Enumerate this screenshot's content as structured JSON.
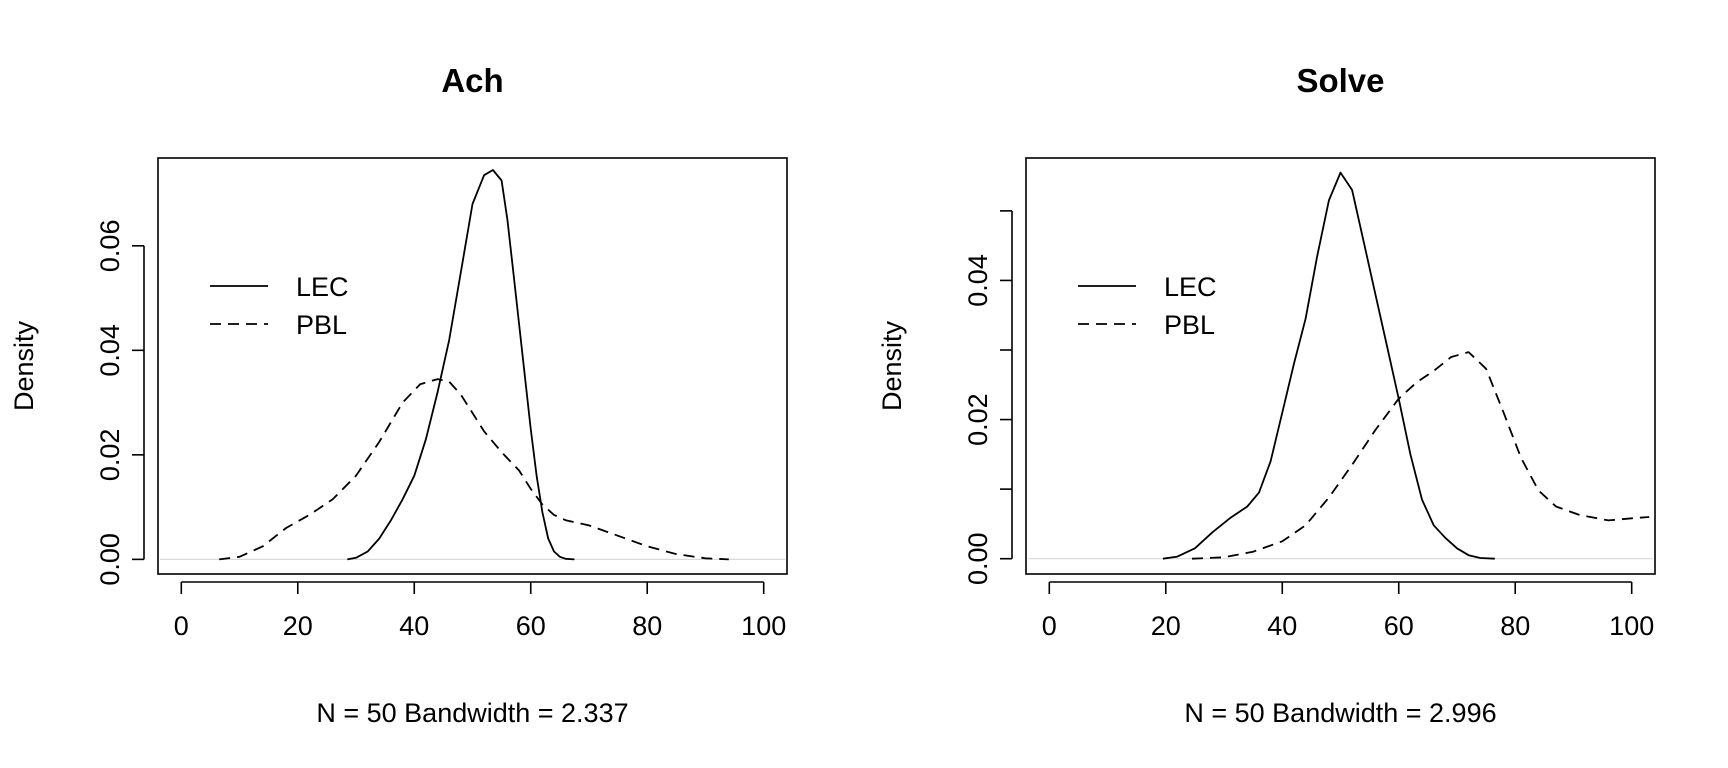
{
  "chart_data": [
    {
      "type": "line",
      "title": "Ach",
      "xlabel": "N = 50   Bandwidth = 2.337",
      "ylabel": "Density",
      "xlim": [
        -4,
        104
      ],
      "ylim": [
        -0.0028,
        0.0768
      ],
      "x_ticks": [
        0,
        20,
        40,
        60,
        80,
        100
      ],
      "x_tick_labels": [
        "0",
        "20",
        "40",
        "60",
        "80",
        "100"
      ],
      "y_ticks": [
        0.0,
        0.02,
        0.04,
        0.06
      ],
      "y_tick_labels": [
        "0.00",
        "0.02",
        "0.04",
        "0.06"
      ],
      "grid": false,
      "legend": {
        "position": "top-left",
        "entries": [
          "LEC",
          "PBL"
        ]
      },
      "series": [
        {
          "name": "LEC",
          "style": "solid",
          "x": [
            28.5,
            30,
            32,
            34,
            36,
            38,
            40,
            42,
            44,
            46,
            48,
            50,
            52,
            53.5,
            55,
            56,
            57,
            58,
            59,
            60,
            61,
            62,
            63,
            64,
            65,
            66,
            67.5
          ],
          "y": [
            0.0,
            0.0003,
            0.0015,
            0.004,
            0.0075,
            0.0115,
            0.016,
            0.023,
            0.032,
            0.042,
            0.055,
            0.068,
            0.0735,
            0.0745,
            0.0725,
            0.065,
            0.055,
            0.045,
            0.035,
            0.025,
            0.016,
            0.009,
            0.004,
            0.0015,
            0.0005,
            0.0001,
            0.0
          ]
        },
        {
          "name": "PBL",
          "style": "dashed",
          "x": [
            6.5,
            10,
            14,
            18,
            22,
            26,
            30,
            34,
            38,
            41,
            44,
            46,
            48,
            50,
            52,
            55,
            58,
            60,
            62,
            64,
            66,
            70,
            75,
            80,
            85,
            90,
            94
          ],
          "y": [
            0.0,
            0.0005,
            0.0025,
            0.006,
            0.0085,
            0.0115,
            0.016,
            0.0225,
            0.03,
            0.0335,
            0.0345,
            0.034,
            0.0315,
            0.028,
            0.0245,
            0.0205,
            0.017,
            0.0135,
            0.0105,
            0.0085,
            0.0075,
            0.0065,
            0.0045,
            0.0025,
            0.001,
            0.0002,
            0.0
          ]
        }
      ]
    },
    {
      "type": "line",
      "title": "Solve",
      "xlabel": "N = 50   Bandwidth = 2.996",
      "ylabel": "Density",
      "xlim": [
        -4,
        104
      ],
      "ylim": [
        -0.0022,
        0.0576
      ],
      "x_ticks": [
        0,
        20,
        40,
        60,
        80,
        100
      ],
      "x_tick_labels": [
        "0",
        "20",
        "40",
        "60",
        "80",
        "100"
      ],
      "y_ticks": [
        0.0,
        0.01,
        0.02,
        0.03,
        0.04,
        0.05
      ],
      "y_tick_labels": [
        "0.00",
        "",
        "0.02",
        "",
        "0.04",
        ""
      ],
      "grid": false,
      "legend": {
        "position": "top-left",
        "entries": [
          "LEC",
          "PBL"
        ]
      },
      "series": [
        {
          "name": "LEC",
          "style": "solid",
          "x": [
            19.5,
            22,
            25,
            28,
            31,
            34,
            36,
            38,
            40,
            42,
            44,
            46,
            48,
            50,
            52,
            54,
            56,
            58,
            60,
            62,
            64,
            66,
            68,
            70,
            72,
            74,
            76.5
          ],
          "y": [
            0.0,
            0.0003,
            0.0015,
            0.0038,
            0.0058,
            0.0075,
            0.0095,
            0.014,
            0.021,
            0.028,
            0.0345,
            0.0435,
            0.0515,
            0.0555,
            0.053,
            0.0455,
            0.038,
            0.0305,
            0.023,
            0.015,
            0.0085,
            0.0048,
            0.003,
            0.0015,
            0.0005,
            0.0001,
            0.0
          ]
        },
        {
          "name": "PBL",
          "style": "dashed",
          "x": [
            24.5,
            30,
            35,
            40,
            44,
            48,
            52,
            56,
            60,
            63,
            66,
            69,
            72,
            75,
            78,
            81,
            84,
            87,
            91,
            96,
            100,
            103
          ],
          "y": [
            0.0,
            0.0002,
            0.001,
            0.0025,
            0.0048,
            0.0088,
            0.0135,
            0.0185,
            0.023,
            0.0253,
            0.027,
            0.029,
            0.0297,
            0.0273,
            0.021,
            0.0145,
            0.0098,
            0.0075,
            0.0063,
            0.0055,
            0.0058,
            0.006
          ]
        }
      ]
    }
  ]
}
